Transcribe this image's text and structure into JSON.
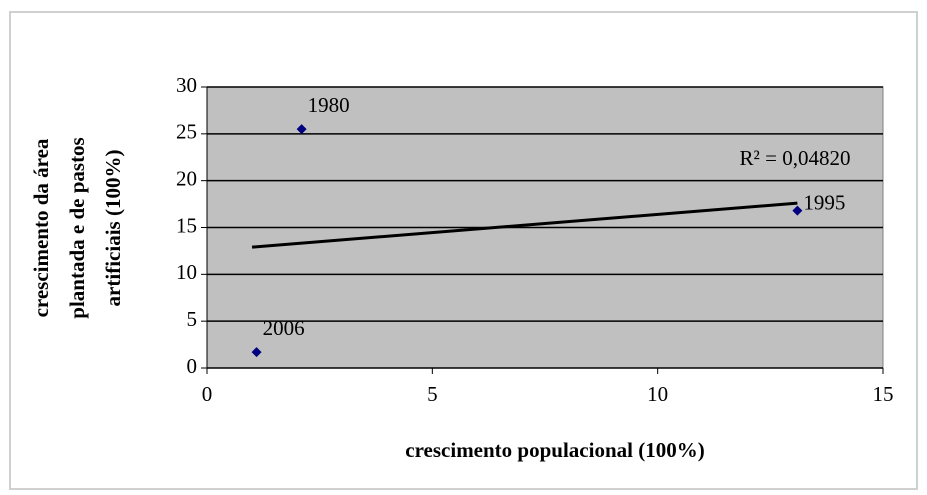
{
  "chart_data": {
    "type": "scatter",
    "xlabel": "crescimento populacional (100%)",
    "ylabel": [
      "crescimento da área",
      "plantada e de pastos",
      "artificiais (100%)"
    ],
    "series": [
      {
        "name": null,
        "color": "#000080",
        "x": [
          2.1,
          13.1,
          1.1
        ],
        "values": [
          25.5,
          16.8,
          1.7
        ],
        "point_labels": [
          "1980",
          "1995",
          "2006"
        ]
      }
    ],
    "trendline": {
      "x": [
        1.0,
        13.1
      ],
      "values": [
        12.9,
        17.6
      ],
      "color": "#000000",
      "annotation": "R² = 0,04820"
    },
    "xlim": [
      0,
      15
    ],
    "xticks": [
      0,
      5,
      10,
      15
    ],
    "ylim": [
      0,
      30
    ],
    "yticks": [
      0,
      5,
      10,
      15,
      20,
      25,
      30
    ],
    "grid": true,
    "plot_background": "#c0c0c0"
  }
}
